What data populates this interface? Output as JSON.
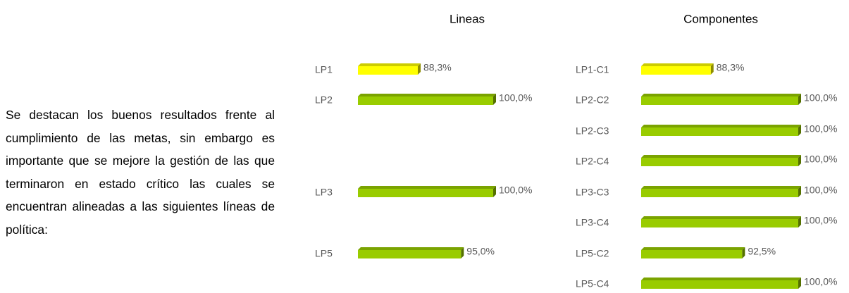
{
  "text": "Se destacan los buenos resultados frente al cumplimiento de las metas, sin embargo es importante que se mejore la gestión de las que terminaron en estado crítico las cuales se encuentran alineadas a las siguientes líneas de política:",
  "chart_data": [
    {
      "type": "bar",
      "orientation": "horizontal",
      "title": "Lineas",
      "categories": [
        "LP1",
        "LP2",
        "LP3",
        "LP5"
      ],
      "values": [
        88.3,
        100,
        100,
        95
      ],
      "value_labels": [
        "88,3%",
        "100,0%",
        "100,0%",
        "95,0%"
      ],
      "colors": [
        "#ffff00",
        "#99cc00",
        "#99cc00",
        "#99cc00"
      ],
      "xlim": [
        79,
        100
      ]
    },
    {
      "type": "bar",
      "orientation": "horizontal",
      "title": "Componentes",
      "categories": [
        "LP1-C1",
        "LP2-C2",
        "LP2-C3",
        "LP2-C4",
        "LP3-C3",
        "LP3-C4",
        "LP5-C2",
        "LP5-C4"
      ],
      "values": [
        88.3,
        100,
        100,
        100,
        100,
        100,
        92.5,
        100
      ],
      "value_labels": [
        "88,3%",
        "100,0%",
        "100,0%",
        "100,0%",
        "100,0%",
        "100,0%",
        "92,5%",
        "100,0%"
      ],
      "colors": [
        "#ffff00",
        "#99cc00",
        "#99cc00",
        "#99cc00",
        "#99cc00",
        "#99cc00",
        "#99cc00",
        "#99cc00"
      ],
      "xlim": [
        79,
        100
      ]
    }
  ]
}
